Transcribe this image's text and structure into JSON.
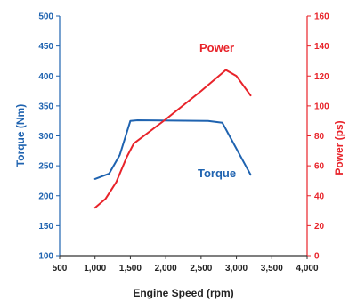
{
  "chart_data": {
    "type": "line",
    "xlabel": "Engine Speed (rpm)",
    "ylabel_left": "Torque (Nm)",
    "ylabel_right": "Power (ps)",
    "x_ticks": [
      500,
      1000,
      1500,
      2000,
      2500,
      3000,
      3500,
      4000
    ],
    "x_tick_labels": [
      "500",
      "1,000",
      "1,500",
      "2,000",
      "2,500",
      "3,000",
      "3,500",
      "4,000"
    ],
    "xlim": [
      500,
      4000
    ],
    "y_left_ticks": [
      100,
      150,
      200,
      250,
      300,
      350,
      400,
      450,
      500
    ],
    "ylim_left": [
      100,
      500
    ],
    "y_right_ticks": [
      0,
      20,
      40,
      60,
      80,
      100,
      120,
      140,
      160
    ],
    "ylim_right": [
      0,
      160
    ],
    "grid": false,
    "colors": {
      "torque": "#1f63b0",
      "power": "#e8232a"
    },
    "series": [
      {
        "name": "Torque",
        "axis": "left",
        "color": "#1f63b0",
        "x": [
          1000,
          1200,
          1350,
          1500,
          1600,
          2600,
          2800,
          3200
        ],
        "y": [
          228,
          237,
          268,
          325,
          326,
          325,
          322,
          235
        ]
      },
      {
        "name": "Power",
        "axis": "right",
        "color": "#e8232a",
        "x": [
          1000,
          1150,
          1300,
          1450,
          1550,
          2000,
          2500,
          2850,
          3000,
          3200
        ],
        "y": [
          32,
          38,
          49,
          66,
          75,
          91,
          110,
          124,
          120,
          107
        ]
      }
    ]
  }
}
